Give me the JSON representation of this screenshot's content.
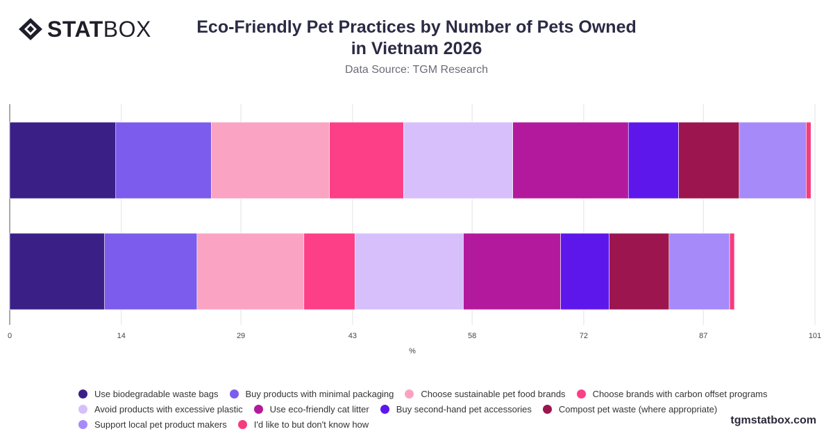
{
  "brand": {
    "name_bold": "STAT",
    "name_light": "BOX"
  },
  "header": {
    "title_line1": "Eco-Friendly Pet Practices by Number of Pets Owned",
    "title_line2": "in Vietnam 2026",
    "subtitle": "Data Source: TGM Research"
  },
  "footer": {
    "site": "tgmstatbox.com"
  },
  "chart_data": {
    "type": "bar",
    "orientation": "horizontal",
    "stacked": true,
    "xlabel": "%",
    "xlim": [
      0,
      101
    ],
    "xticks": [
      0,
      14,
      29,
      43,
      58,
      72,
      87,
      101
    ],
    "grid": true,
    "legend_position": "bottom",
    "categories": [
      "",
      ""
    ],
    "series": [
      {
        "name": "Use biodegradable waste bags",
        "color": "#3a1f86",
        "values": [
          13.3,
          11.9
        ]
      },
      {
        "name": "Buy products with minimal packaging",
        "color": "#7b5cec",
        "values": [
          12.0,
          11.6
        ]
      },
      {
        "name": "Choose sustainable pet food brands",
        "color": "#fba3c2",
        "values": [
          14.8,
          13.4
        ]
      },
      {
        "name": "Choose brands with carbon offset programs",
        "color": "#fc3f86",
        "values": [
          9.3,
          6.4
        ]
      },
      {
        "name": "Avoid products with excessive plastic",
        "color": "#d6bffb",
        "values": [
          13.7,
          13.6
        ]
      },
      {
        "name": "Use eco-friendly cat litter",
        "color": "#b3199d",
        "values": [
          14.5,
          12.2
        ]
      },
      {
        "name": "Buy second-hand pet accessories",
        "color": "#5e17eb",
        "values": [
          6.3,
          6.1
        ]
      },
      {
        "name": "Compost pet waste (where appropriate)",
        "color": "#9c154e",
        "values": [
          7.6,
          7.5
        ]
      },
      {
        "name": "Support local pet product makers",
        "color": "#a68af9",
        "values": [
          8.4,
          7.6
        ]
      },
      {
        "name": "I'd like to but don't know how",
        "color": "#f63b7f",
        "values": [
          0.6,
          0.6
        ]
      }
    ]
  }
}
